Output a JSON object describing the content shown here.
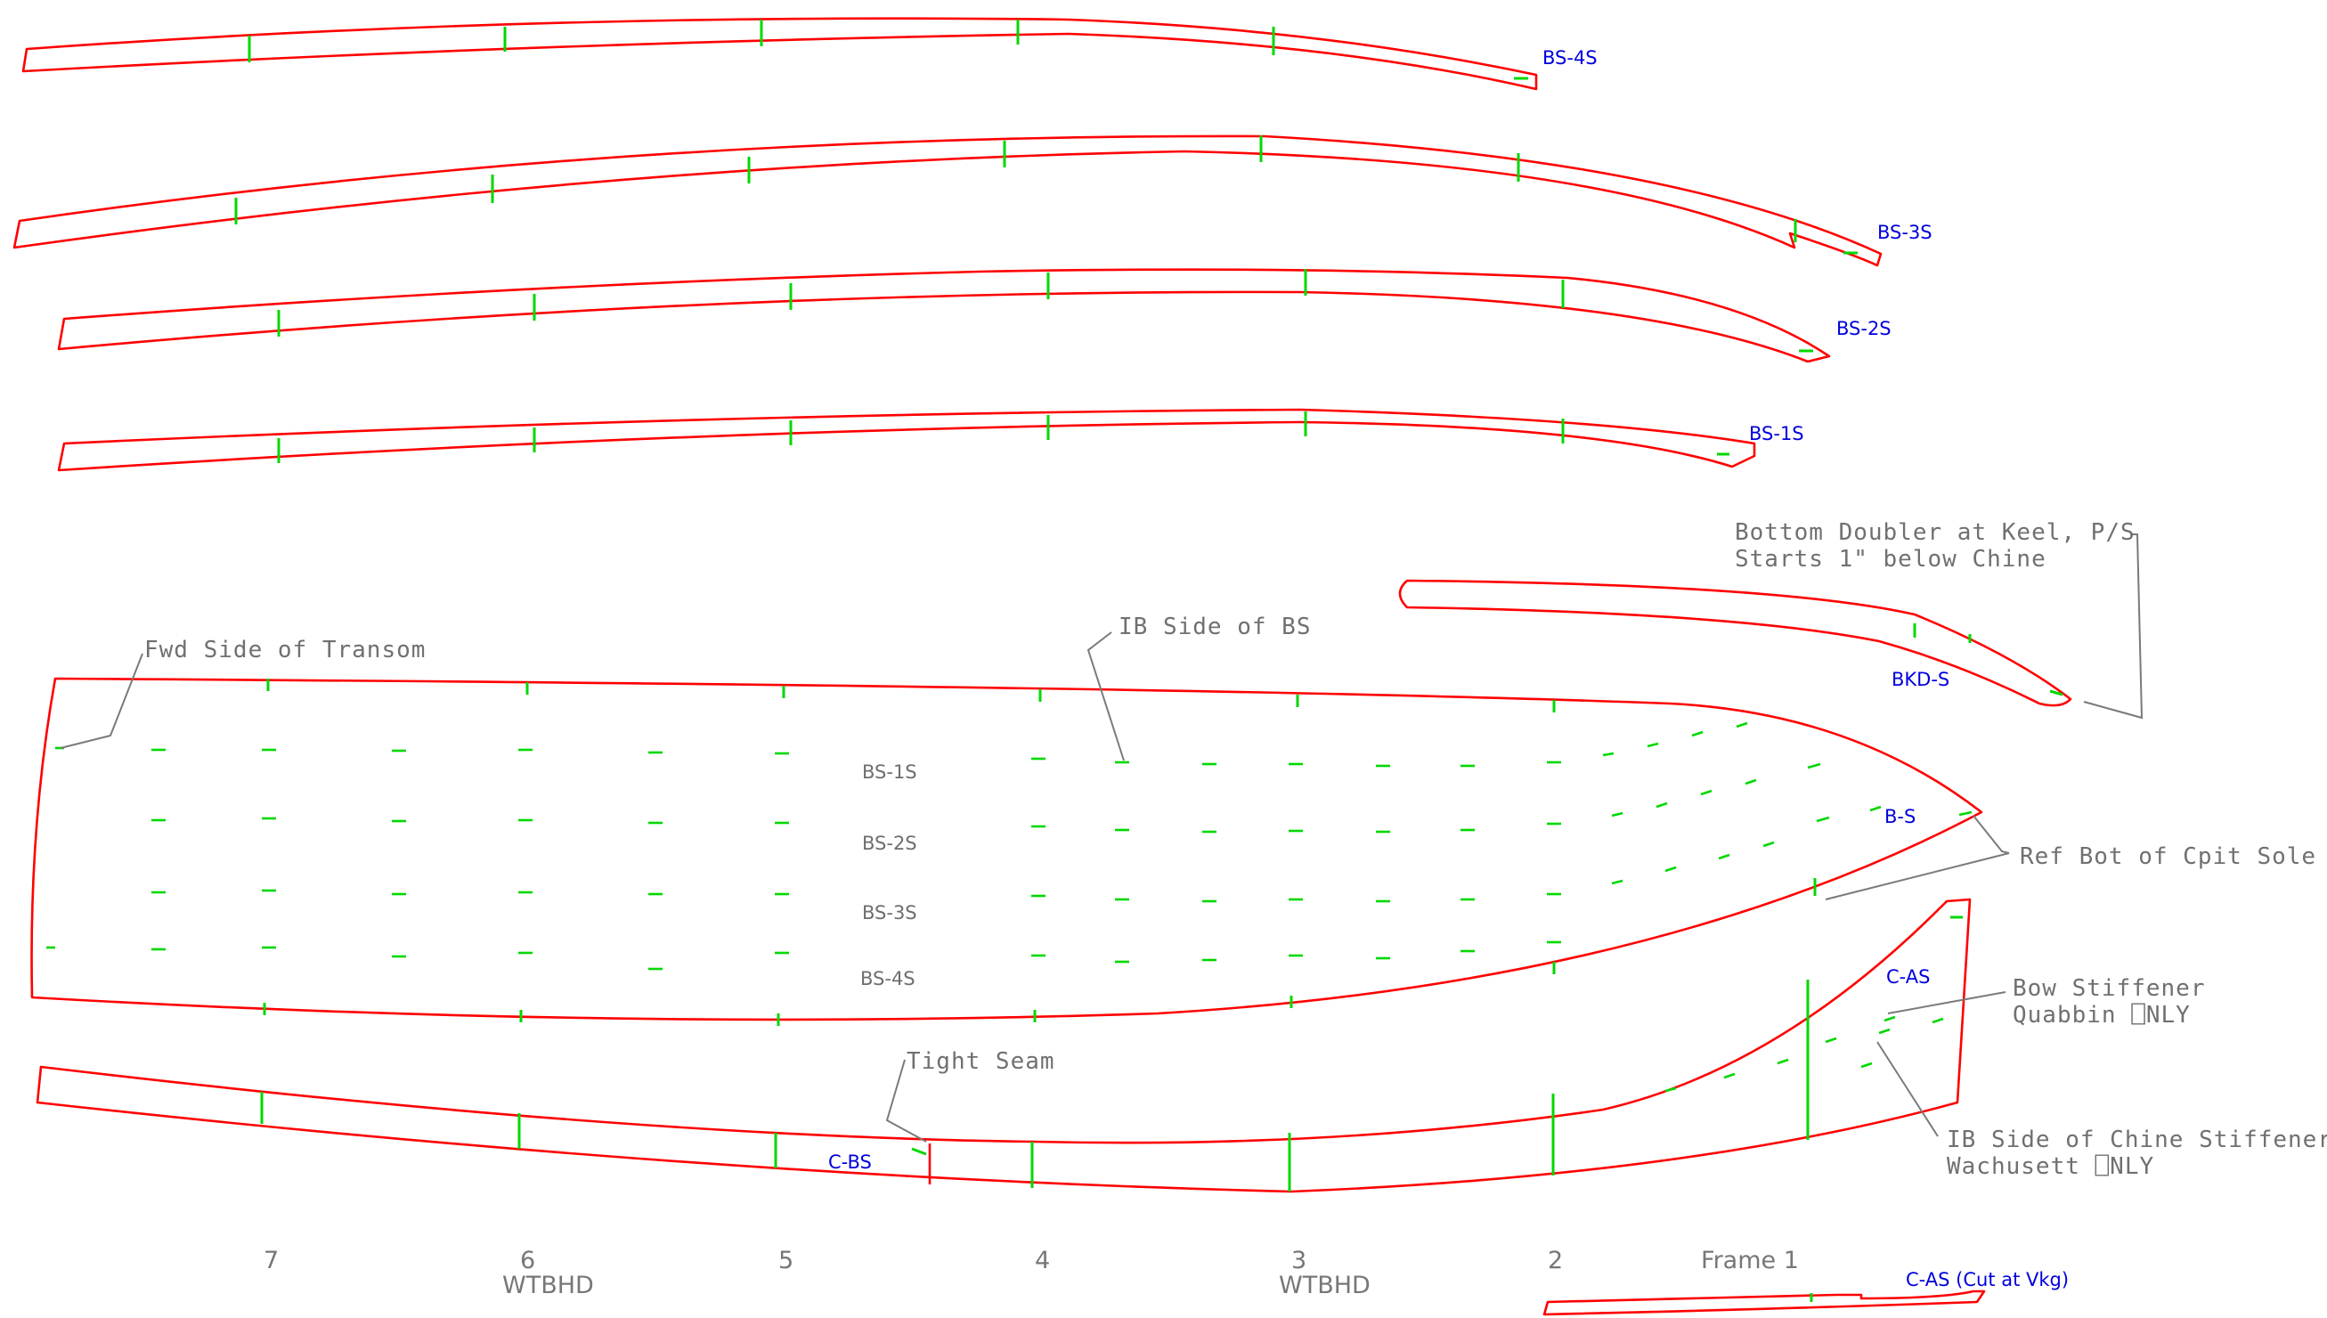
{
  "part_labels": {
    "bs4": "BS-4S",
    "bs3": "BS-3S",
    "bs2": "BS-2S",
    "bs1": "BS-1S",
    "bkd": "BKD-S",
    "bs": "B-S",
    "cas": "C-AS",
    "cbs": "C-BS",
    "cas_cut": "C-AS (Cut at Vkg)"
  },
  "stringer_labels": [
    "BS-1S",
    "BS-2S",
    "BS-3S",
    "BS-4S"
  ],
  "notes": {
    "doubler_1": "Bottom Doubler at Keel, P/S",
    "doubler_2": "Starts 1\" below Chine",
    "transom": "Fwd Side of Transom",
    "ib_side_bs": "IB Side of BS",
    "cpit_sole": "Ref Bot of Cpit Sole",
    "bow_stiffener_1": "Bow Stiffener",
    "bow_stiffener_2": "Quabbin ⎕NLY",
    "chine_stiffener_1": "IB Side of Chine Stiffener",
    "chine_stiffener_2": "Wachusett ⎕NLY",
    "tight_seam": "Tight Seam"
  },
  "frames": [
    "7",
    "6",
    "5",
    "4",
    "3",
    "2",
    "Frame 1"
  ],
  "bulkheads": [
    "WTBHD",
    "WTBHD"
  ],
  "colors": {
    "part_outline": "#ff0000",
    "station_marks": "#00d800",
    "part_label": "#0000dd",
    "annotation": "#707070"
  }
}
